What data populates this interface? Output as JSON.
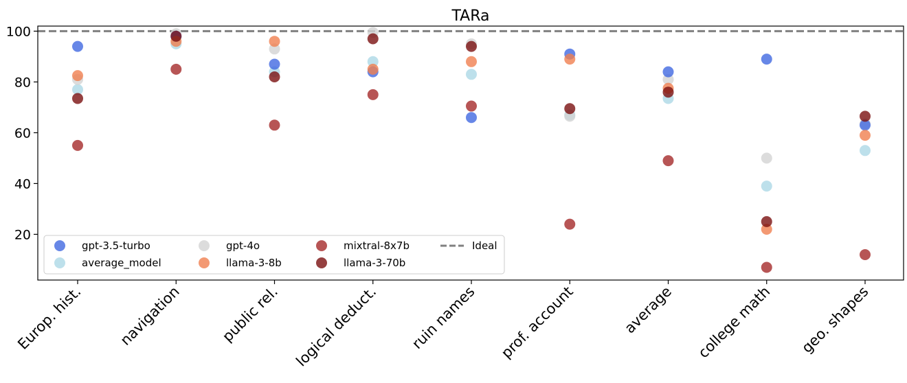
{
  "chart_data": {
    "type": "scatter",
    "title": "TARa",
    "xlabel": "",
    "ylabel": "",
    "ylim": [
      2,
      102
    ],
    "yticks": [
      20,
      40,
      60,
      80,
      100
    ],
    "categories": [
      "Europ. hist.",
      "navigation",
      "public rel.",
      "logical deduct.",
      "ruin names",
      "prof. account",
      "average",
      "college math",
      "geo. shapes"
    ],
    "series": [
      {
        "name": "average_model",
        "color": "#add8e6",
        "values": [
          77,
          95,
          84,
          88,
          83,
          67,
          73.5,
          39,
          53
        ]
      },
      {
        "name": "gpt-4o",
        "color": "#d3d3d3",
        "values": [
          81,
          99,
          93,
          99.5,
          95,
          66.5,
          81,
          50,
          63.5
        ]
      },
      {
        "name": "gpt-3.5-turbo",
        "color": "#4169e1",
        "values": [
          94,
          98,
          87,
          84,
          66,
          91,
          84,
          89,
          63
        ]
      },
      {
        "name": "llama-3-8b",
        "color": "#f08050",
        "values": [
          82.5,
          96,
          96,
          85,
          88,
          89,
          77.5,
          22,
          59
        ]
      },
      {
        "name": "mixtral-8x7b",
        "color": "#a52a2a",
        "values": [
          55,
          85,
          63,
          75,
          70.5,
          24,
          49,
          7,
          12
        ]
      },
      {
        "name": "llama-3-70b",
        "color": "#7b1010",
        "values": [
          73.5,
          98,
          82,
          97,
          94,
          69.5,
          76,
          25,
          66.5
        ]
      }
    ],
    "ideal": {
      "name": "Ideal",
      "value": 100,
      "color": "#808080"
    },
    "legend": {
      "position": "lower-left",
      "entries": [
        "gpt-3.5-turbo",
        "average_model",
        "gpt-4o",
        "llama-3-8b",
        "mixtral-8x7b",
        "llama-3-70b",
        "Ideal"
      ]
    }
  }
}
